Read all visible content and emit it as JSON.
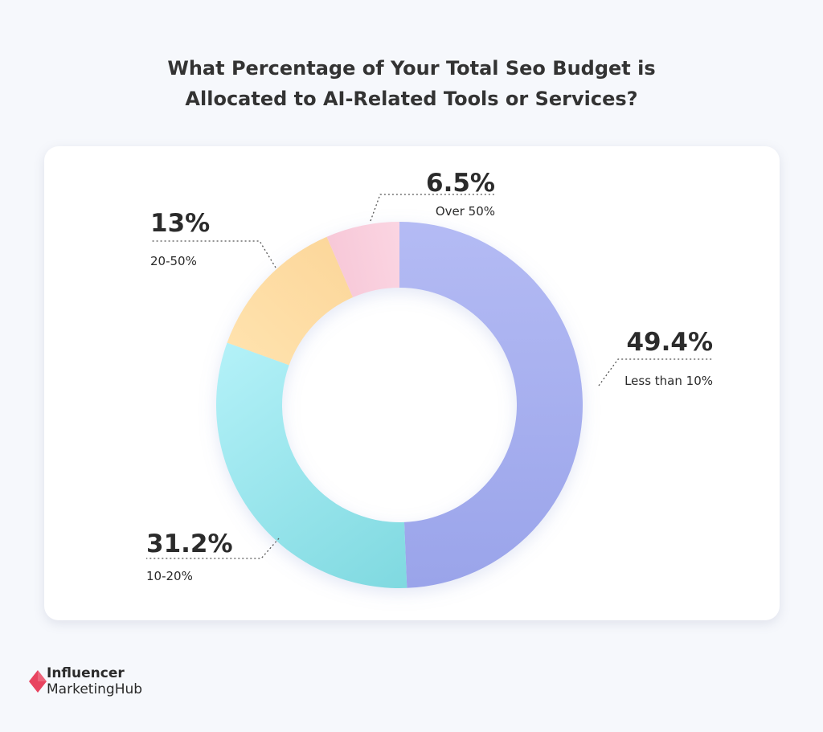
{
  "title": {
    "line1": "What Percentage of Your Total Seo Budget is",
    "line2": "Allocated to AI-Related Tools or Services?"
  },
  "chart_data": {
    "type": "pie",
    "variant": "donut",
    "title": "What Percentage of Your Total Seo Budget is Allocated to AI-Related Tools or Services?",
    "slices": [
      {
        "label": "Less than 10%",
        "value": 49.4,
        "display": "49.4%",
        "color_start": "#b4bbf4",
        "color_end": "#9aa4ea"
      },
      {
        "label": "10-20%",
        "value": 31.2,
        "display": "31.2%",
        "color_start": "#7fd9e0",
        "color_end": "#b3f1f8"
      },
      {
        "label": "20-50%",
        "value": 13,
        "display": "13%",
        "color_start": "#ffe2ad",
        "color_end": "#fcd79b"
      },
      {
        "label": "Over 50%",
        "value": 6.5,
        "display": "6.5%",
        "color_start": "#f7c8d8",
        "color_end": "#fbd5e2"
      }
    ],
    "start_angle_deg": 0,
    "direction": "clockwise",
    "legend": "none"
  },
  "logo": {
    "line1": "Influencer",
    "line2": "MarketingHub",
    "color": "#e8435f"
  }
}
